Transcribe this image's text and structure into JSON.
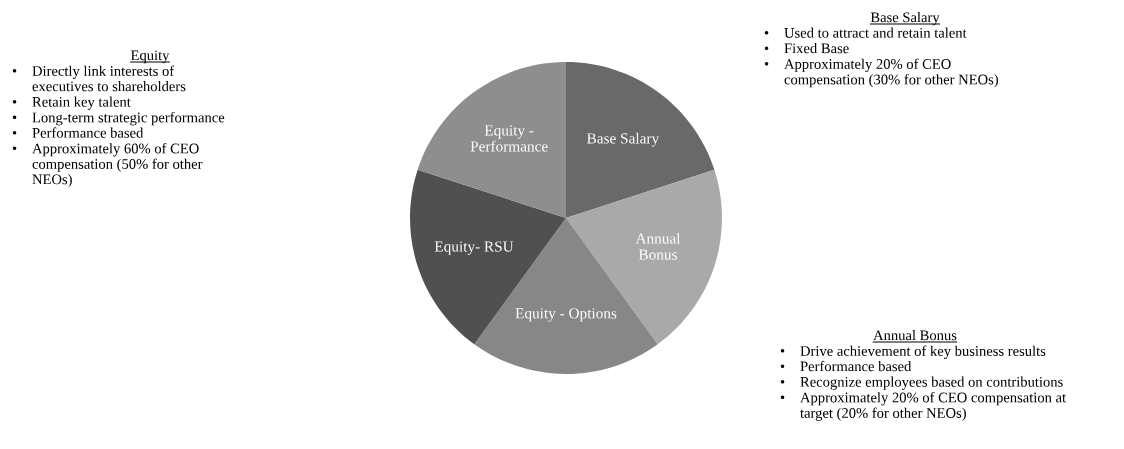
{
  "chart_data": {
    "type": "pie",
    "categories": [
      "Base Salary",
      "Annual\nBonus",
      "Equity - Options",
      "Equity- RSU",
      "Equity -\nPerformance"
    ],
    "values": [
      20,
      20,
      20,
      20,
      20
    ],
    "colors": [
      "#696969",
      "#a9a9a9",
      "#878787",
      "#505050",
      "#8e8e8e"
    ],
    "annotations": [
      "Equity\n•\tDirectly link interests of\n\texecutives to shareholders\n•\tRetain key talent\n•\tLong-term strategic performance\n•\tPerformance based\n•\tApproximately 60% of CEO\n\tcompensation (50% for other\n\tNEOs)",
      "Base Salary\n•\tUsed to attract and retain talent\n•\tFixed Base\n•\tApproximately 20% of CEO\n\tcompensation (30% for other NEOs)",
      "Annual Bonus\n•\tDrive achievement of key business results\n•\tPerformance based\n•\tRecognize employees based on contributions\n•\tApproximately 20% of CEO compensation at\n\ttarget (20% for other NEOs)"
    ]
  }
}
